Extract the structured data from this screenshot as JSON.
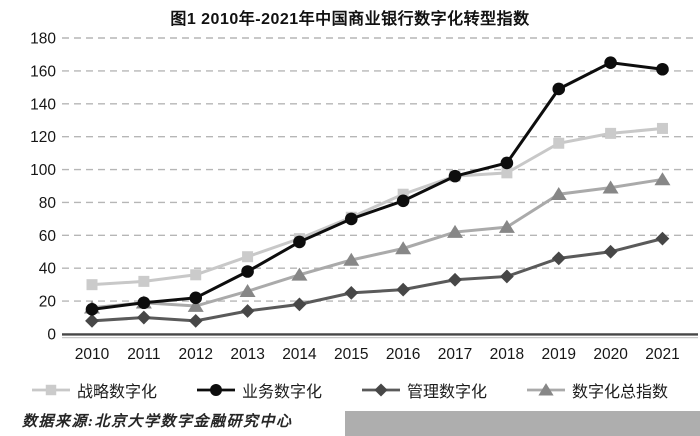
{
  "title": "图1 2010年-2021年中国商业银行数字化转型指数",
  "source_note": "数据来源:北京大学数字金融研究中心",
  "colors": {
    "background": "#ffffff",
    "gridline": "#b6b6b6",
    "axis_line": "#474747",
    "axis_shadow": "#c9c9c9",
    "tick_label": "#161616",
    "gray_box": "#aeaeae"
  },
  "chart_data": {
    "type": "line",
    "title": "图1 2010年-2021年中国商业银行数字化转型指数",
    "categories": [
      "2010",
      "2011",
      "2012",
      "2013",
      "2014",
      "2015",
      "2016",
      "2017",
      "2018",
      "2019",
      "2020",
      "2021"
    ],
    "series": [
      {
        "name": "战略数字化",
        "marker": "square",
        "line_color": "#c8c8c8",
        "marker_color": "#cbcbcb",
        "values": [
          30,
          32,
          36,
          47,
          58,
          71,
          85,
          96,
          98,
          116,
          122,
          125
        ]
      },
      {
        "name": "业务数字化",
        "marker": "circle",
        "line_color": "#0d0d0d",
        "marker_color": "#0d0d0d",
        "values": [
          15,
          19,
          22,
          38,
          56,
          70,
          81,
          96,
          104,
          149,
          165,
          161
        ]
      },
      {
        "name": "管理数字化",
        "marker": "diamond",
        "line_color": "#5a5a5a",
        "marker_color": "#474747",
        "values": [
          8,
          10,
          8,
          14,
          18,
          25,
          27,
          33,
          35,
          46,
          50,
          58
        ]
      },
      {
        "name": "数字化总指数",
        "marker": "triangle",
        "line_color": "#aaaaaa",
        "marker_color": "#878787",
        "values": [
          16,
          19,
          17,
          26,
          36,
          45,
          52,
          62,
          65,
          85,
          89,
          94
        ]
      }
    ],
    "xlabel": "",
    "ylabel": "",
    "ylim": [
      0,
      180
    ],
    "yticks": [
      0,
      20,
      40,
      60,
      80,
      100,
      120,
      140,
      160,
      180
    ],
    "grid": "horizontal-dashed",
    "legend_position": "bottom"
  }
}
